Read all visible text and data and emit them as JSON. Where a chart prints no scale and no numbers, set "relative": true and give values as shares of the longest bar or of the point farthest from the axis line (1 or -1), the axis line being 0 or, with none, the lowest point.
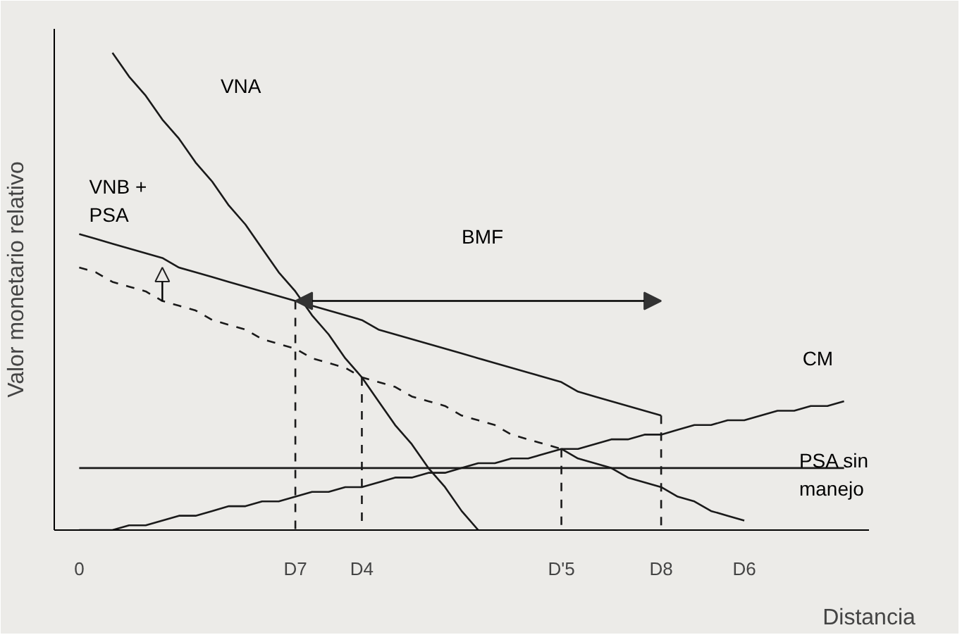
{
  "chart_data": {
    "type": "line",
    "relative": true,
    "xlabel": "Distancia",
    "ylabel": "Valor monetario relativo",
    "categories": [
      "0",
      null,
      null,
      null,
      null,
      null,
      null,
      null,
      null,
      null,
      null,
      null,
      null,
      "D7",
      null,
      null,
      null,
      "D4",
      null,
      null,
      null,
      null,
      null,
      null,
      null,
      null,
      null,
      null,
      null,
      "D'5",
      null,
      null,
      null,
      null,
      null,
      "D8",
      null,
      null,
      null,
      null,
      "D6",
      null,
      null,
      null,
      null,
      null,
      null,
      null
    ],
    "series": [
      {
        "color": "#1a1a1a",
        "values": [
          null,
          null,
          1,
          0.95,
          0.91,
          0.86,
          0.82,
          0.77,
          0.73,
          0.68,
          0.64,
          0.59,
          0.54,
          0.5,
          0.45,
          0.41,
          0.36,
          0.32,
          0.27,
          0.22,
          0.18,
          0.13,
          0.09,
          0.04,
          0,
          null,
          null,
          null,
          null,
          null,
          null,
          null,
          null,
          null,
          null,
          null,
          null,
          null,
          null,
          null,
          null,
          null,
          null,
          null,
          null,
          null,
          null,
          null
        ]
      },
      {
        "color": "#1a1a1a",
        "values": [
          0.62,
          0.61,
          0.6,
          0.59,
          0.58,
          0.57,
          0.55,
          0.54,
          0.53,
          0.52,
          0.51,
          0.5,
          0.49,
          0.48,
          0.47,
          0.46,
          0.45,
          0.44,
          0.42,
          0.41,
          0.4,
          0.39,
          0.38,
          0.37,
          0.36,
          0.35,
          0.34,
          0.33,
          0.32,
          0.31,
          0.29,
          0.28,
          0.27,
          0.26,
          0.25,
          0.24,
          null,
          null,
          null,
          null,
          null,
          null,
          null,
          null,
          null,
          null,
          null,
          null
        ]
      },
      {
        "color": "#1a1a1a",
        "line_style": "dashed",
        "values": [
          0.55,
          0.54,
          0.52,
          0.51,
          0.5,
          0.48,
          0.47,
          0.46,
          0.44,
          0.43,
          0.42,
          0.4,
          0.39,
          0.38,
          0.36,
          0.35,
          0.34,
          0.32,
          0.31,
          0.3,
          0.28,
          0.27,
          0.26,
          0.24,
          0.23,
          0.22,
          0.2,
          0.19,
          0.18,
          0.17,
          null,
          null,
          null,
          null,
          null,
          null,
          null,
          null,
          null,
          null,
          null,
          null,
          null,
          null,
          null,
          null,
          null,
          null
        ]
      },
      {
        "color": "#1a1a1a",
        "values": [
          null,
          null,
          null,
          null,
          null,
          null,
          null,
          null,
          null,
          null,
          null,
          null,
          null,
          null,
          null,
          null,
          null,
          null,
          null,
          null,
          null,
          null,
          null,
          null,
          null,
          null,
          null,
          null,
          null,
          0.17,
          0.15,
          0.14,
          0.13,
          0.11,
          0.1,
          0.09,
          0.07,
          0.06,
          0.04,
          0.03,
          0.02,
          null,
          null,
          null,
          null,
          null,
          null,
          null
        ]
      },
      {
        "color": "#1a1a1a",
        "values": [
          0,
          0,
          0,
          0.01,
          0.01,
          0.02,
          0.03,
          0.03,
          0.04,
          0.05,
          0.05,
          0.06,
          0.06,
          0.07,
          0.08,
          0.08,
          0.09,
          0.09,
          0.1,
          0.11,
          0.11,
          0.12,
          0.12,
          0.13,
          0.14,
          0.14,
          0.15,
          0.15,
          0.16,
          0.17,
          0.17,
          0.18,
          0.19,
          0.19,
          0.2,
          0.2,
          0.21,
          0.22,
          0.22,
          0.23,
          0.23,
          0.24,
          0.25,
          0.25,
          0.26,
          0.26,
          0.27,
          null
        ]
      },
      {
        "color": "#1a1a1a",
        "values": [
          0.13,
          0.13,
          0.13,
          0.13,
          0.13,
          0.13,
          0.13,
          0.13,
          0.13,
          0.13,
          0.13,
          0.13,
          0.13,
          0.13,
          0.13,
          0.13,
          0.13,
          0.13,
          0.13,
          0.13,
          0.13,
          0.13,
          0.13,
          0.13,
          0.13,
          0.13,
          0.13,
          0.13,
          0.13,
          0.13,
          0.13,
          0.13,
          0.13,
          0.13,
          0.13,
          0.13,
          0.13,
          0.13,
          0.13,
          0.13,
          0.13,
          0.13,
          0.13,
          0.13,
          0.13,
          0.13,
          0.13,
          null
        ]
      },
      {
        "color": "#1a1a1a",
        "line_style": "dashed",
        "x": [
          "D7",
          "D7"
        ],
        "values": [
          0.48,
          0
        ]
      },
      {
        "color": "#1a1a1a",
        "line_style": "dashed",
        "x": [
          "D4",
          "D4"
        ],
        "values": [
          0.32,
          0
        ]
      },
      {
        "color": "#1a1a1a",
        "line_style": "dashed",
        "x": [
          "D'5",
          "D'5"
        ],
        "values": [
          0.17,
          0
        ]
      },
      {
        "color": "#1a1a1a",
        "line_style": "dashed",
        "x": [
          "D8",
          "D8"
        ],
        "values": [
          0.24,
          0
        ]
      }
    ],
    "annotations": [
      "VNA",
      "VNB +\nPSA",
      "BMF",
      "CM",
      "PSA sin\nmanejo"
    ]
  }
}
